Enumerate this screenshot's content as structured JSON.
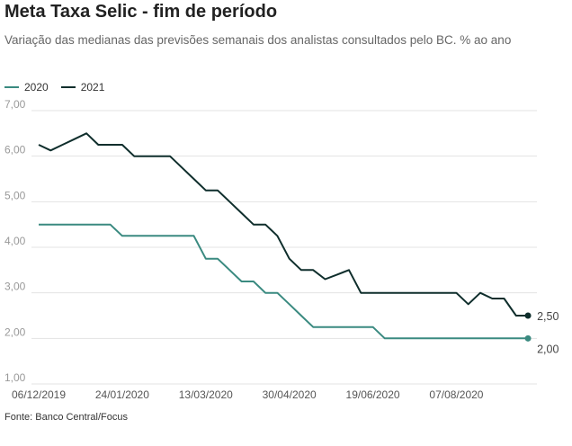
{
  "title": "Meta Taxa Selic - fim de período",
  "subtitle": "Variação das medianas das previsões semanais dos analistas consultados pelo BC. % ao ano",
  "source": "Fonte: Banco Central/Focus",
  "chart_data": {
    "type": "line",
    "title": "Meta Taxa Selic - fim de período",
    "ylabel": "% ao ano",
    "ylim": [
      1,
      7
    ],
    "yticks": [
      "1,00",
      "2,00",
      "3,00",
      "4,00",
      "5,00",
      "6,00",
      "7,00"
    ],
    "xticks": [
      "06/12/2019",
      "24/01/2020",
      "13/03/2020",
      "30/04/2020",
      "19/06/2020",
      "07/08/2020"
    ],
    "xtick_week_index": [
      0,
      7,
      14,
      21,
      28,
      35
    ],
    "x_frequency": "weekly",
    "grid": true,
    "legend": "top-left",
    "series": [
      {
        "name": "2020",
        "color": "#3a8a80",
        "end_label": "2,00",
        "values": [
          4.5,
          4.5,
          4.5,
          4.5,
          4.5,
          4.5,
          4.5,
          4.25,
          4.25,
          4.25,
          4.25,
          4.25,
          4.25,
          4.25,
          3.75,
          3.75,
          3.5,
          3.25,
          3.25,
          3.0,
          3.0,
          2.75,
          2.5,
          2.25,
          2.25,
          2.25,
          2.25,
          2.25,
          2.25,
          2.0,
          2.0,
          2.0,
          2.0,
          2.0,
          2.0,
          2.0,
          2.0,
          2.0,
          2.0,
          2.0,
          2.0,
          2.0
        ]
      },
      {
        "name": "2021",
        "color": "#0f2e2c",
        "end_label": "2,50",
        "values": [
          6.25,
          6.125,
          6.25,
          6.375,
          6.5,
          6.25,
          6.25,
          6.25,
          6.0,
          6.0,
          6.0,
          6.0,
          5.75,
          5.5,
          5.25,
          5.25,
          5.0,
          4.75,
          4.5,
          4.5,
          4.25,
          3.75,
          3.5,
          3.5,
          3.3,
          3.4,
          3.5,
          3.0,
          3.0,
          3.0,
          3.0,
          3.0,
          3.0,
          3.0,
          3.0,
          3.0,
          2.75,
          3.0,
          2.875,
          2.875,
          2.5,
          2.5
        ]
      }
    ]
  }
}
